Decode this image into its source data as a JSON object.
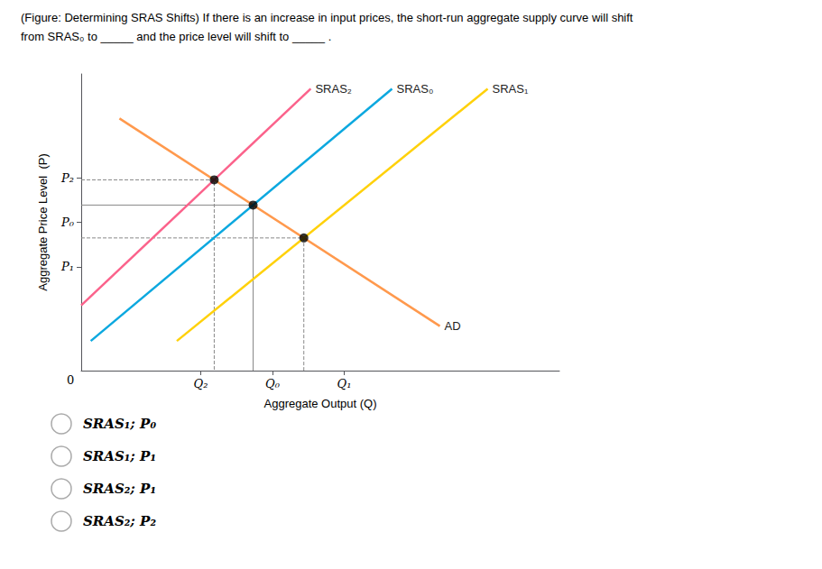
{
  "chart_data": {
    "type": "line",
    "title": "(Figure: Determining SRAS Shifts) If there is an increase in input prices, the short-run aggregate supply curve will shift",
    "subtitle": "from SRAS₀ to _____ and the price level will shift to _____ .",
    "xlabel": "Aggregate Output (Q)",
    "ylabel": "Aggregate Price Level  (P)",
    "xlim": [
      0,
      10
    ],
    "ylim": [
      0,
      10
    ],
    "xticks": [
      {
        "value": 2.5,
        "label": "Q₂"
      },
      {
        "value": 4.0,
        "label": "Q₀"
      },
      {
        "value": 5.5,
        "label": "Q₁"
      }
    ],
    "yticks": [
      {
        "value": 3.5,
        "label": "P₁"
      },
      {
        "value": 5.0,
        "label": "P₀"
      },
      {
        "value": 6.5,
        "label": "P₂"
      }
    ],
    "grid": false,
    "origin_label": "0",
    "series": [
      {
        "name": "AD",
        "x": [
          0.8,
          7.5
        ],
        "values": [
          8.5,
          1.5
        ]
      },
      {
        "name": "SRAS₀",
        "x": [
          0.2,
          6.5
        ],
        "values": [
          1.0,
          9.5
        ]
      },
      {
        "name": "SRAS₁",
        "x": [
          2.0,
          8.5
        ],
        "values": [
          1.0,
          9.5
        ]
      },
      {
        "name": "SRAS₂",
        "x": [
          0.0,
          4.8
        ],
        "values": [
          2.2,
          9.5
        ]
      }
    ],
    "equilibria": {
      "color": "#000000",
      "marker": "circle",
      "x": [
        2.78134,
        3.59471,
        4.6552
      ],
      "values": [
        6.42995,
        5.58016,
        4.47218
      ],
      "line_style": [
        "dashed",
        "solid",
        "dashed"
      ]
    },
    "choices": [
      "SRAS₁; P₀",
      "SRAS₁; P₁",
      "SRAS₂; P₁",
      "SRAS₂; P₂"
    ]
  }
}
